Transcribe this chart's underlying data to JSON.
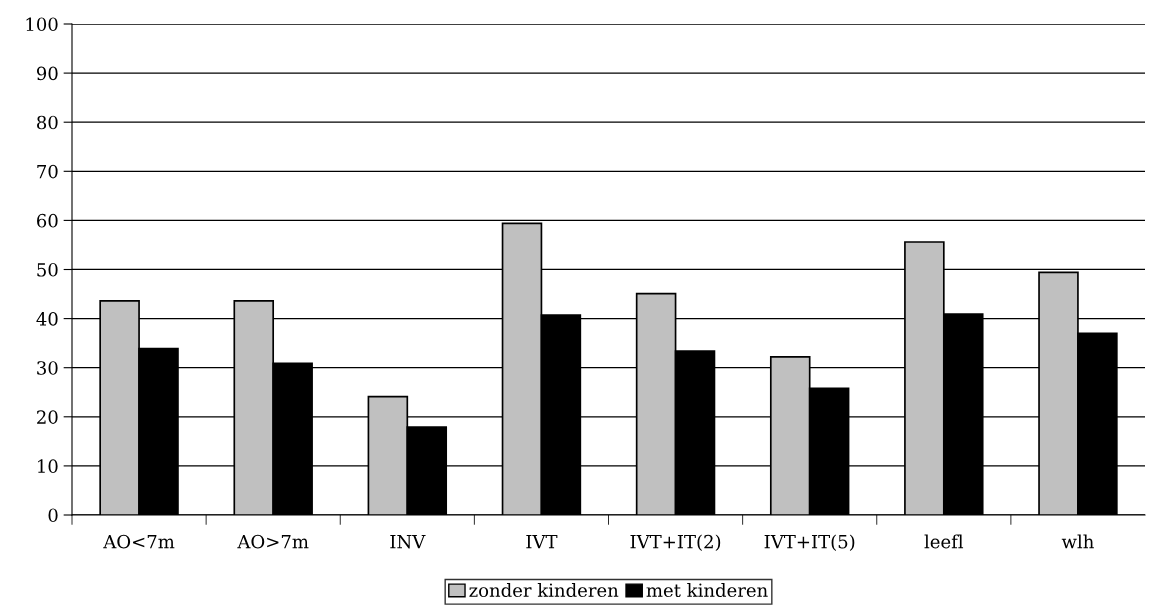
{
  "chart_data": {
    "type": "bar",
    "categories": [
      "AO<7m",
      "AO>7m",
      "INV",
      "IVT",
      "IVT+IT(2)",
      "IVT+IT(5)",
      "leefl",
      "wlh"
    ],
    "series": [
      {
        "name": "zonder kinderen",
        "color": "#c0c0c0",
        "values": [
          43.6,
          43.6,
          24.1,
          59.4,
          45.1,
          32.2,
          55.6,
          49.4
        ]
      },
      {
        "name": "met kinderen",
        "color": "#000000",
        "values": [
          33.9,
          30.9,
          17.9,
          40.7,
          33.4,
          25.8,
          40.9,
          37.0
        ]
      }
    ],
    "ylim": [
      0,
      100
    ],
    "yticks": [
      0,
      10,
      20,
      30,
      40,
      50,
      60,
      70,
      80,
      90,
      100
    ],
    "grid": "y",
    "legend": "bottom"
  }
}
